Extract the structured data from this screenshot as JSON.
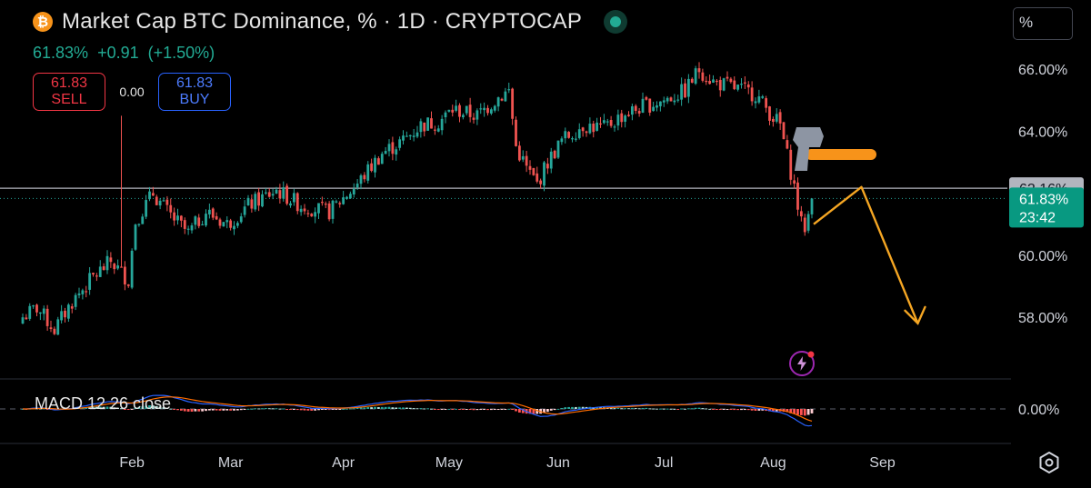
{
  "header": {
    "coin_icon": "bitcoin-icon",
    "title": "Market Cap BTC Dominance, % · 1D · CRYPTOCAP",
    "last": "61.83%",
    "change": "+0.91",
    "change_pct": "(+1.50%)"
  },
  "trade": {
    "sell_price": "61.83",
    "sell_label": "SELL",
    "spread": "0.00",
    "buy_price": "61.83",
    "buy_label": "BUY"
  },
  "unit_button": "%",
  "price_axis": {
    "ticks": [
      "66.00%",
      "64.00%",
      "62.16%",
      "60.00%",
      "58.00%"
    ],
    "marker_price": "62.16%",
    "current_price": "61.83%",
    "countdown": "23:42",
    "macd_zero": "0.00%"
  },
  "time_axis": [
    "Feb",
    "Mar",
    "Apr",
    "May",
    "Jun",
    "Jul",
    "Aug",
    "Sep"
  ],
  "indicator": {
    "label": "MACD 12 26 close"
  },
  "colors": {
    "up": "#26a69a",
    "down": "#ef5350",
    "accent": "#f7931a",
    "projection": "#f5a623",
    "macd": "#2962ff",
    "signal": "#ff6d00"
  },
  "chart_data": {
    "type": "candlestick",
    "title": "Market Cap BTC Dominance, % · 1D · CRYPTOCAP",
    "ylabel": "%",
    "ylim": [
      56.0,
      67.0
    ],
    "horizontal_line": 62.16,
    "last_price": 61.83,
    "anchors": [
      {
        "day": 0,
        "v": 58.0
      },
      {
        "day": 4,
        "v": 58.3
      },
      {
        "day": 9,
        "v": 57.6
      },
      {
        "day": 14,
        "v": 58.5
      },
      {
        "day": 20,
        "v": 59.3
      },
      {
        "day": 25,
        "v": 59.8
      },
      {
        "day": 30,
        "v": 59.2
      },
      {
        "day": 32,
        "v": 61.1
      },
      {
        "day": 37,
        "v": 62.0
      },
      {
        "day": 41,
        "v": 61.4
      },
      {
        "day": 47,
        "v": 60.7
      },
      {
        "day": 52,
        "v": 61.4
      },
      {
        "day": 58,
        "v": 61.0
      },
      {
        "day": 64,
        "v": 61.6
      },
      {
        "day": 72,
        "v": 62.1
      },
      {
        "day": 79,
        "v": 61.6
      },
      {
        "day": 87,
        "v": 61.4
      },
      {
        "day": 95,
        "v": 62.3
      },
      {
        "day": 102,
        "v": 63.3
      },
      {
        "day": 108,
        "v": 63.7
      },
      {
        "day": 113,
        "v": 64.2
      },
      {
        "day": 118,
        "v": 64.3
      },
      {
        "day": 122,
        "v": 64.7
      },
      {
        "day": 129,
        "v": 64.5
      },
      {
        "day": 135,
        "v": 65.1
      },
      {
        "day": 138,
        "v": 65.3
      },
      {
        "day": 140,
        "v": 63.5
      },
      {
        "day": 143,
        "v": 62.8
      },
      {
        "day": 146,
        "v": 62.3
      },
      {
        "day": 149,
        "v": 63.0
      },
      {
        "day": 153,
        "v": 63.7
      },
      {
        "day": 159,
        "v": 64.2
      },
      {
        "day": 165,
        "v": 64.1
      },
      {
        "day": 170,
        "v": 64.5
      },
      {
        "day": 176,
        "v": 64.8
      },
      {
        "day": 182,
        "v": 65.0
      },
      {
        "day": 188,
        "v": 65.3
      },
      {
        "day": 192,
        "v": 66.0
      },
      {
        "day": 196,
        "v": 65.6
      },
      {
        "day": 202,
        "v": 65.4
      },
      {
        "day": 208,
        "v": 65.2
      },
      {
        "day": 212,
        "v": 64.6
      },
      {
        "day": 215,
        "v": 64.2
      },
      {
        "day": 217,
        "v": 63.2
      },
      {
        "day": 219,
        "v": 62.2
      },
      {
        "day": 221,
        "v": 61.0
      },
      {
        "day": 222,
        "v": 60.9
      },
      {
        "day": 223,
        "v": 61.3
      },
      {
        "day": 224,
        "v": 61.83
      }
    ],
    "annotations": [
      {
        "type": "hammer-icon",
        "near_day": 224
      },
      {
        "type": "projection-arrow",
        "points": [
          [
            224,
            61.0
          ],
          [
            236,
            62.2
          ],
          [
            252,
            57.8
          ]
        ]
      }
    ],
    "x_ticks": [
      "Feb",
      "Mar",
      "Apr",
      "May",
      "Jun",
      "Jul",
      "Aug",
      "Sep"
    ]
  }
}
